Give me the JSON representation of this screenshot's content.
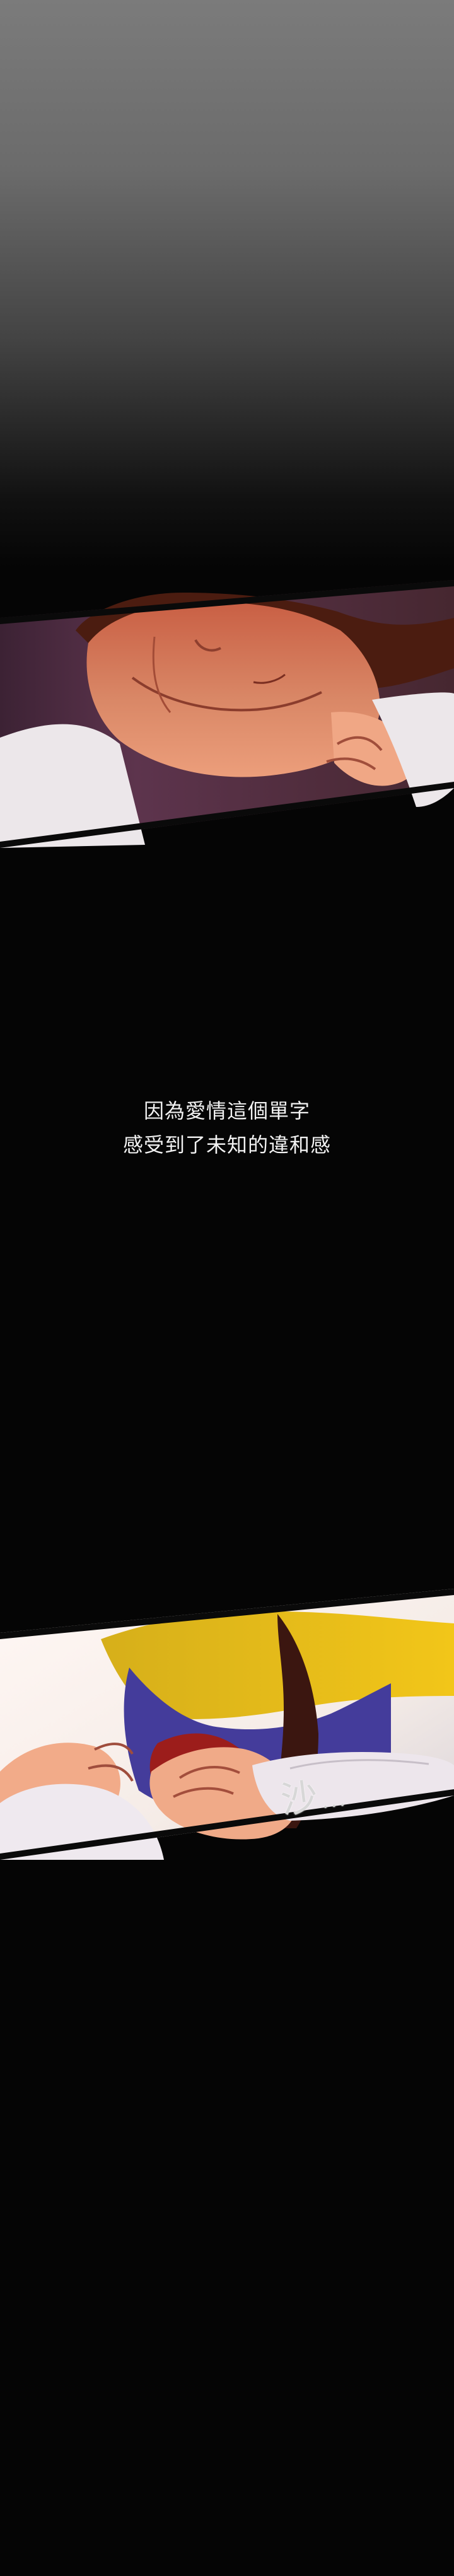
{
  "narration": {
    "line1": "因為愛情這個單字",
    "line2": "感受到了未知的違和感"
  },
  "sound_effect": {
    "main": "沙",
    "dots": "..."
  },
  "colors": {
    "background": "#050505",
    "skin": "#d88967",
    "shirt": "#ece7ea",
    "hair": "#3d170f"
  }
}
